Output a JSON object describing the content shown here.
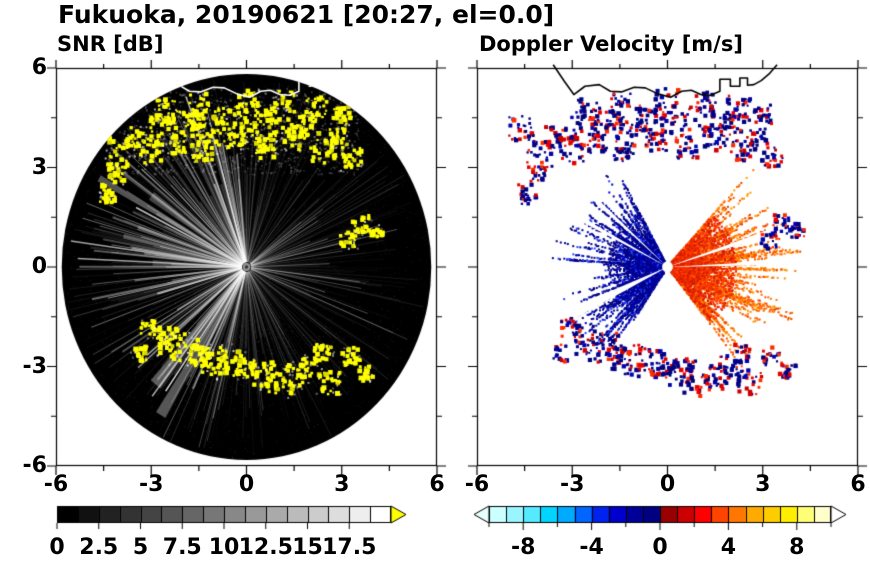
{
  "title": "Fukuoka, 20190621 [20:27, el=0.0]",
  "header": {
    "station": "Fukuoka",
    "date": "20190621",
    "time": "20:27",
    "elevation": "0.0"
  },
  "axis": {
    "range": [
      -6,
      6
    ],
    "xtick_values": [
      -6,
      -3,
      0,
      3,
      6
    ],
    "ytick_values": [
      6,
      3,
      0,
      -3,
      -6
    ],
    "minor_ticks": [
      -4.5,
      -1.5,
      1.5,
      4.5
    ]
  },
  "panels": [
    {
      "label": "SNR [dB]",
      "xticks": [
        "-6",
        "-3",
        "0",
        "3",
        "6"
      ],
      "yticks": [
        "6",
        "3",
        "0",
        "-3",
        "-6"
      ],
      "colorbar": {
        "labels": [
          "0",
          "2.5",
          "5",
          "7.5",
          "10",
          "12.5",
          "15",
          "17.5"
        ],
        "label_values": [
          0,
          2.5,
          5,
          7.5,
          10,
          12.5,
          15,
          17.5
        ],
        "min": 0,
        "max": 20,
        "segments": 16,
        "start_color": "#000000",
        "end_color": "#ffffff",
        "overflow_arrow_color": "#ffff00"
      }
    },
    {
      "label": "Doppler Velocity [m/s]",
      "xticks": [
        "-6",
        "-3",
        "0",
        "3",
        "6"
      ],
      "yticks": [],
      "colorbar": {
        "labels": [
          "-8",
          "-4",
          "0",
          "4",
          "8"
        ],
        "label_values": [
          -8,
          -4,
          0,
          4,
          8
        ],
        "min": -10,
        "max": 10,
        "palette": [
          "#ccffff",
          "#99f6ff",
          "#55eaff",
          "#00d4ff",
          "#00aaff",
          "#0066ff",
          "#0022ee",
          "#0000cc",
          "#000099",
          "#000080",
          "#990000",
          "#cc0000",
          "#ff0000",
          "#ff4400",
          "#ff7700",
          "#ffaa00",
          "#ffcc00",
          "#ffee00",
          "#ffff77",
          "#ffffcc"
        ],
        "underflow_arrow_color": "#e6ffff",
        "overflow_arrow_color": "#ffffff"
      }
    }
  ],
  "coastline": [
    [
      -3.6,
      6.1
    ],
    [
      -3.25,
      5.6
    ],
    [
      -2.95,
      5.2
    ],
    [
      -2.6,
      5.45
    ],
    [
      -2.15,
      5.5
    ],
    [
      -1.8,
      5.3
    ],
    [
      -1.45,
      5.28
    ],
    [
      -1.05,
      5.42
    ],
    [
      -0.7,
      5.4
    ],
    [
      -0.3,
      5.22
    ],
    [
      0.1,
      5.12
    ],
    [
      0.45,
      5.3
    ],
    [
      0.75,
      5.33
    ],
    [
      1.05,
      5.2
    ],
    [
      1.35,
      5.18
    ],
    [
      1.65,
      5.3
    ],
    [
      1.65,
      5.66
    ],
    [
      1.98,
      5.66
    ],
    [
      1.98,
      5.45
    ],
    [
      2.28,
      5.45
    ],
    [
      2.28,
      5.7
    ],
    [
      2.52,
      5.7
    ],
    [
      2.52,
      5.48
    ],
    [
      2.72,
      5.5
    ],
    [
      2.95,
      5.62
    ],
    [
      3.2,
      5.82
    ],
    [
      3.45,
      6.1
    ]
  ],
  "chart_data": [
    {
      "type": "heatmap",
      "subtype": "radar_ppi",
      "title": "SNR [dB]",
      "xlabel": "",
      "ylabel": "",
      "xlim": [
        -6,
        6
      ],
      "ylim": [
        -6,
        6
      ],
      "background_disk_color": "#000000",
      "disk_radius": 5.82,
      "field": "signal-to-noise ratio, grayscale radial streaks 0-17.5 dB with yellow overflow clutter",
      "colorbar_range": [
        0,
        17.5
      ],
      "clutter_color": "#ffff00",
      "clutter_echoes": [
        [
          -4.0,
          3.4,
          1.0
        ],
        [
          -3.5,
          3.9,
          0.8
        ],
        [
          -3.0,
          3.5,
          0.9
        ],
        [
          -2.6,
          4.1,
          1.1
        ],
        [
          -2.2,
          3.7,
          0.7
        ],
        [
          -1.8,
          4.3,
          1.0
        ],
        [
          -1.4,
          3.5,
          0.8
        ],
        [
          -1.1,
          4.0,
          1.2
        ],
        [
          -0.7,
          4.5,
          0.9
        ],
        [
          -0.3,
          3.8,
          0.7
        ],
        [
          0.2,
          4.2,
          1.0
        ],
        [
          0.6,
          3.6,
          0.8
        ],
        [
          1.0,
          4.4,
          1.1
        ],
        [
          1.5,
          3.9,
          0.9
        ],
        [
          2.0,
          4.3,
          0.8
        ],
        [
          2.4,
          3.5,
          1.0
        ],
        [
          2.9,
          3.9,
          0.7
        ],
        [
          3.3,
          3.3,
          0.8
        ],
        [
          -2.5,
          4.7,
          0.9
        ],
        [
          -1.5,
          4.9,
          0.8
        ],
        [
          0.0,
          5.0,
          0.9
        ],
        [
          1.2,
          5.0,
          0.8
        ],
        [
          2.2,
          4.8,
          1.0
        ],
        [
          3.0,
          4.6,
          0.7
        ],
        [
          -4.6,
          4.2,
          0.9
        ],
        [
          -4.4,
          2.2,
          0.7
        ],
        [
          -4.1,
          2.8,
          0.6
        ],
        [
          3.6,
          1.3,
          0.7
        ],
        [
          3.2,
          0.8,
          0.6
        ],
        [
          4.1,
          1.1,
          0.5
        ],
        [
          -3.0,
          -1.9,
          0.8
        ],
        [
          -2.5,
          -2.2,
          1.0
        ],
        [
          -2.0,
          -2.5,
          1.2
        ],
        [
          -1.5,
          -2.7,
          0.9
        ],
        [
          -1.0,
          -2.8,
          1.1
        ],
        [
          -0.5,
          -2.9,
          1.0
        ],
        [
          0.0,
          -3.0,
          0.8
        ],
        [
          0.5,
          -3.2,
          1.0
        ],
        [
          1.0,
          -3.4,
          1.2
        ],
        [
          1.5,
          -3.3,
          0.9
        ],
        [
          2.0,
          -3.0,
          0.8
        ],
        [
          2.4,
          -2.6,
          0.7
        ],
        [
          -3.4,
          -2.6,
          0.6
        ],
        [
          2.6,
          -3.5,
          0.9
        ],
        [
          3.3,
          -2.7,
          0.7
        ],
        [
          3.8,
          -3.2,
          0.6
        ]
      ]
    },
    {
      "type": "heatmap",
      "subtype": "radar_ppi",
      "title": "Doppler Velocity [m/s]",
      "xlabel": "",
      "ylabel": "",
      "xlim": [
        -6,
        6
      ],
      "ylim": [
        -6,
        6
      ],
      "background_color": "#ffffff",
      "field": "Doppler velocity dipole: negative (blue/navy, toward) fan on west side, positive (red/orange, away) fan on east side, navy/red ground-clutter blobs at same echo locations as SNR panel",
      "colorbar_range": [
        -10,
        10
      ],
      "negative_fan": {
        "angle_deg": [
          118,
          237
        ],
        "max_radius": 3.8,
        "dense_radius": 1.7,
        "colors": [
          "#000080",
          "#000080",
          "#000090",
          "#0000a0",
          "#0000c8",
          "#2244ff",
          "#000080"
        ]
      },
      "positive_fan": {
        "angle_deg": [
          -52,
          48
        ],
        "max_radius": 4.4,
        "dense_radius": 2.0,
        "colors": [
          "#ff5500",
          "#ff6600",
          "#ff7700",
          "#ff8800",
          "#e64400",
          "#ff9900"
        ],
        "core_colors": [
          "#ee2a00",
          "#ff3300",
          "#e02000",
          "#ff4400",
          "#cc1a00"
        ]
      },
      "clutter_colors": [
        "#000080",
        "#cc0000"
      ]
    }
  ]
}
